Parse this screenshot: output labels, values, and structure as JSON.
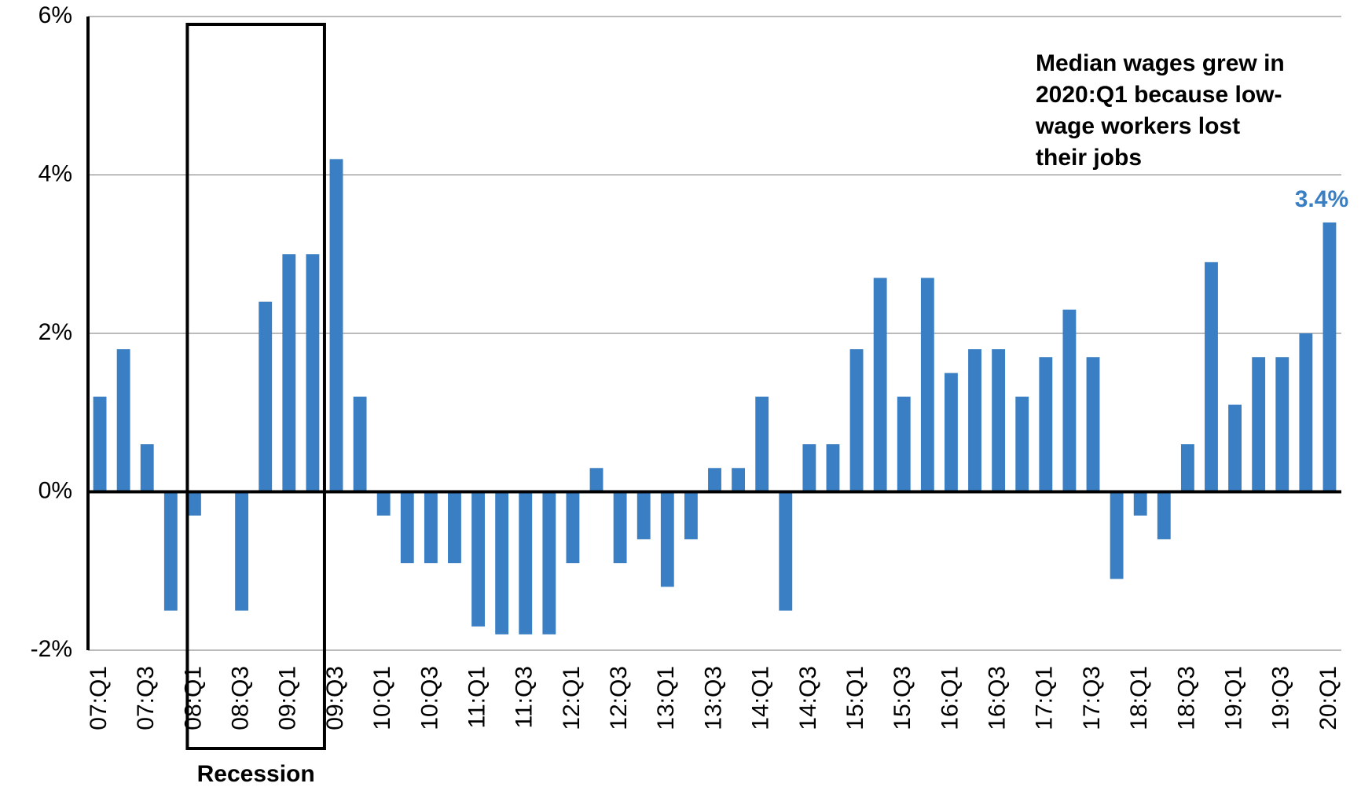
{
  "chart_data": {
    "type": "bar",
    "categories": [
      "07:Q1",
      null,
      "07:Q3",
      null,
      "08:Q1",
      null,
      "08:Q3",
      null,
      "09:Q1",
      null,
      "09:Q3",
      null,
      "10:Q1",
      null,
      "10:Q3",
      null,
      "11:Q1",
      null,
      "11:Q3",
      null,
      "12:Q1",
      null,
      "12:Q3",
      null,
      "13:Q1",
      null,
      "13:Q3",
      null,
      "14:Q1",
      null,
      "14:Q3",
      null,
      "15:Q1",
      null,
      "15:Q3",
      null,
      "16:Q1",
      null,
      "16:Q3",
      null,
      "17:Q1",
      null,
      "17:Q3",
      null,
      "18:Q1",
      null,
      "18:Q3",
      null,
      "19:Q1",
      null,
      "19:Q3",
      null,
      "20:Q1"
    ],
    "values": [
      1.2,
      1.8,
      0.6,
      -1.5,
      -0.3,
      0,
      -1.5,
      2.4,
      3.0,
      3.0,
      4.2,
      1.2,
      -0.3,
      -0.9,
      -0.9,
      -0.9,
      -1.7,
      -1.8,
      -1.8,
      -1.8,
      -0.9,
      0.3,
      -0.9,
      -0.6,
      -1.2,
      -0.6,
      0.3,
      0.3,
      1.2,
      -1.5,
      0.6,
      0.6,
      1.8,
      2.7,
      1.2,
      2.7,
      1.5,
      1.8,
      1.8,
      1.2,
      1.7,
      2.3,
      1.7,
      -1.1,
      -0.3,
      -0.6,
      0.6,
      2.9,
      1.1,
      1.7,
      1.7,
      2.0,
      3.4
    ],
    "value_labels": [
      null,
      null,
      null,
      null,
      null,
      null,
      null,
      null,
      null,
      null,
      null,
      null,
      null,
      null,
      null,
      null,
      null,
      null,
      null,
      null,
      null,
      null,
      null,
      null,
      null,
      null,
      null,
      null,
      null,
      null,
      null,
      null,
      null,
      null,
      null,
      null,
      null,
      null,
      null,
      null,
      null,
      null,
      null,
      null,
      null,
      null,
      null,
      null,
      null,
      null,
      null,
      null,
      "3.4%"
    ],
    "color": "#3a7fc4",
    "ylim": [
      -2,
      6
    ],
    "yticks": [
      {
        "value": -2,
        "label": "-2%"
      },
      {
        "value": 0,
        "label": "0%"
      },
      {
        "value": 2,
        "label": "2%"
      },
      {
        "value": 4,
        "label": "4%"
      },
      {
        "value": 6,
        "label": "6%"
      }
    ],
    "grid": true,
    "annotation": [
      "Median wages grew in",
      "2020:Q1 because low-",
      "wage workers lost",
      "their jobs"
    ],
    "recession_label": "Recession"
  }
}
